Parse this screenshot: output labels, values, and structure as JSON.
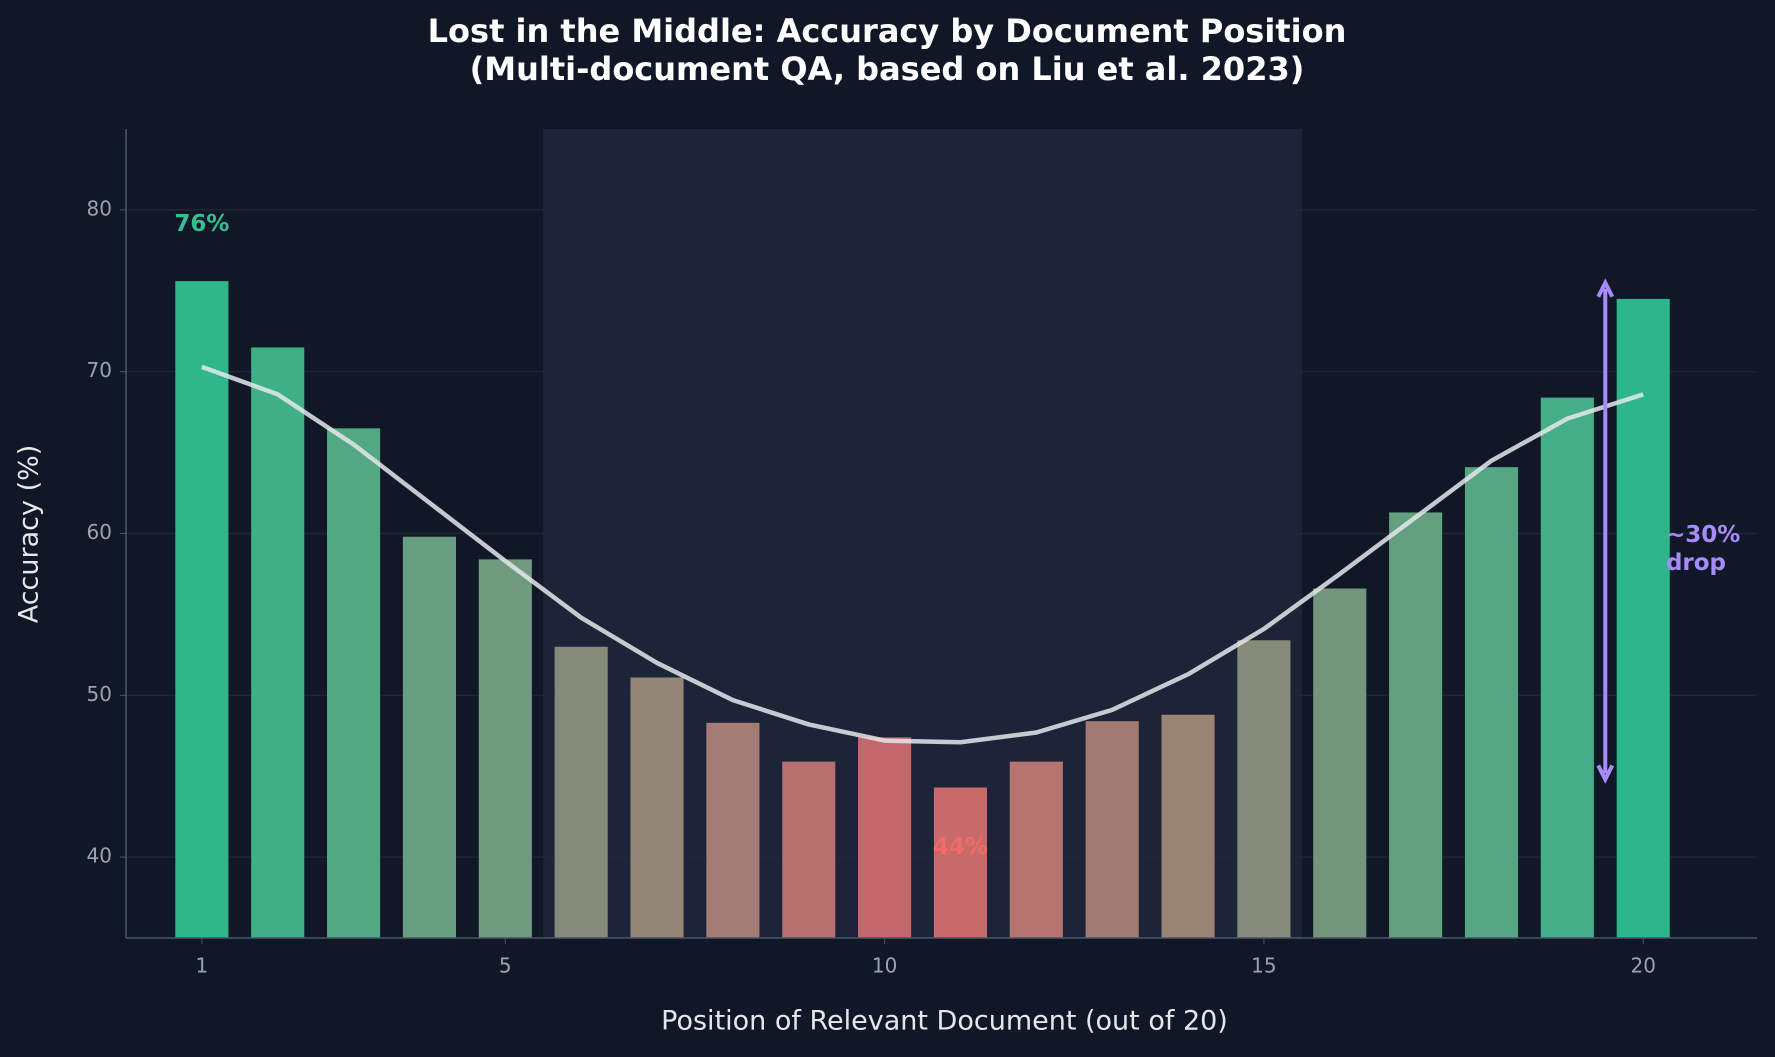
{
  "chart_data": {
    "type": "bar",
    "title": [
      "Lost in the Middle: Accuracy by Document Position",
      "(Multi-document QA, based on Liu et al. 2023)"
    ],
    "x_label": "Position of Relevant Document (out of 20)",
    "y_label": "Accuracy (%)",
    "x": [
      1,
      2,
      3,
      4,
      5,
      6,
      7,
      8,
      9,
      10,
      11,
      12,
      13,
      14,
      15,
      16,
      17,
      18,
      19,
      20
    ],
    "series": [
      {
        "kind": "bar",
        "values": [
          75.6,
          71.5,
          66.5,
          59.8,
          58.4,
          53.0,
          51.1,
          48.3,
          45.9,
          47.4,
          44.3,
          45.9,
          48.4,
          48.8,
          53.4,
          56.6,
          61.3,
          64.1,
          68.4,
          74.5
        ],
        "colors": [
          "#2eb88a",
          "#3fb085",
          "#52a882",
          "#66a081",
          "#6e9a7e",
          "#848b78",
          "#948676",
          "#a37c73",
          "#b6716f",
          "#c4676a",
          "#c86a6a",
          "#b57470",
          "#a27c72",
          "#9a8474",
          "#858c79",
          "#74967d",
          "#62a07f",
          "#55a682",
          "#44ae86",
          "#2db68a"
        ]
      },
      {
        "kind": "line",
        "color": "#e5e7eb",
        "values": [
          70.3,
          68.6,
          65.5,
          61.9,
          58.3,
          54.8,
          52.0,
          49.7,
          48.2,
          47.2,
          47.1,
          47.7,
          49.1,
          51.3,
          54.1,
          57.5,
          61.0,
          64.5,
          67.1,
          68.6
        ]
      }
    ],
    "highlight_span": [
      5.5,
      15.5
    ],
    "xlim": [
      0,
      21.5
    ],
    "xticks": [
      1,
      5,
      10,
      15,
      20
    ],
    "ylim": [
      35,
      85
    ],
    "yticks": [
      40,
      50,
      60,
      70,
      80
    ],
    "grid": true,
    "annotations": [
      {
        "text": [
          "76%"
        ],
        "x": 1,
        "y": 79.1,
        "color": "#34c08f"
      },
      {
        "text": [
          "44%"
        ],
        "x": 11,
        "y": 40.6,
        "color": "#f06a6a"
      },
      {
        "text": [
          "~30%",
          "drop"
        ],
        "x": 20.3,
        "y": 59,
        "color": "#a78bfa"
      }
    ],
    "arrow": {
      "x": 19.5,
      "y_from": 44.8,
      "y_to": 75.5,
      "color": "#a78bfa"
    }
  }
}
